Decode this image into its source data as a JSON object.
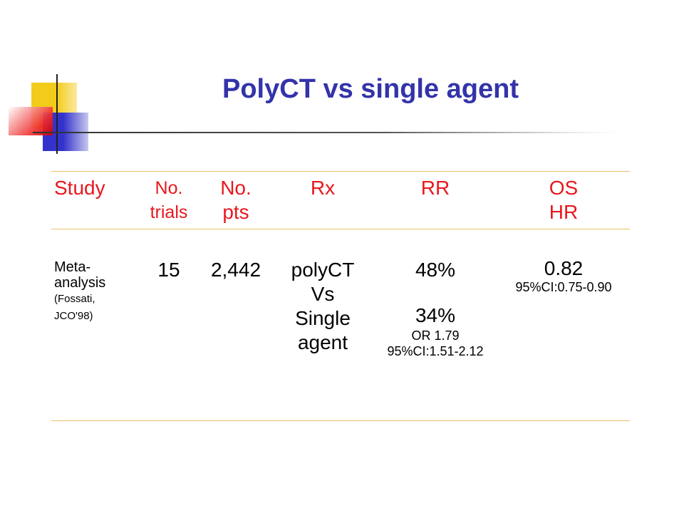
{
  "slide": {
    "title": "PolyCT vs single agent"
  },
  "table": {
    "headers": {
      "study": "Study",
      "no_trials_1": "No.",
      "no_trials_2": "trials",
      "no_pts_1": "No.",
      "no_pts_2": "pts",
      "rx": "Rx",
      "rr": "RR",
      "os_1": "OS",
      "os_2": "HR"
    },
    "row": {
      "study_1": "Meta-",
      "study_2": "analysis",
      "study_ref_1": "(Fossati,",
      "study_ref_2": "JCO'98)",
      "no_trials": "15",
      "no_pts": "2,442",
      "rx_1": "polyCT",
      "rx_2": "Vs",
      "rx_3": "Single",
      "rx_4": "agent",
      "rr_poly": "48%",
      "rr_single": "34%",
      "rr_or": "OR 1.79",
      "rr_ci": "95%CI:1.51-2.12",
      "os_hr": "0.82",
      "os_ci": "95%CI:0.75-0.90"
    }
  },
  "colors": {
    "title": "#3333aa",
    "header_text": "#e8181e",
    "rule": "#e8c06a",
    "deco_yellow": "#f2cc1a",
    "deco_blue": "#3333cc",
    "deco_red": "#ee2a2a"
  }
}
